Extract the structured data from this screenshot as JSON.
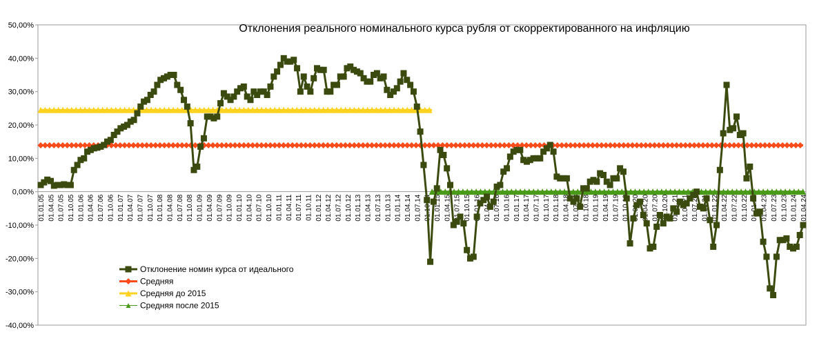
{
  "chart_data": {
    "type": "line",
    "title": "Отклонения реального номинального курса рубля от скорректированного на инфляцию",
    "xlabel": "",
    "ylabel": "",
    "ylim": [
      -0.4,
      0.5
    ],
    "y_tick_labels": [
      "50,00%",
      "40,00%",
      "30,00%",
      "20,00%",
      "10,00%",
      "0,00%",
      "-10,00%",
      "-20,00%",
      "-30,00%",
      "-40,00%"
    ],
    "y_tick_values": [
      0.5,
      0.4,
      0.3,
      0.2,
      0.1,
      0.0,
      -0.1,
      -0.2,
      -0.3,
      -0.4
    ],
    "x_tick_labels": [
      "01.01.05",
      "01.04.05",
      "01.07.05",
      "01.10.05",
      "01.01.06",
      "01.04.06",
      "01.07.06",
      "01.10.06",
      "01.01.07",
      "01.04.07",
      "01.07.07",
      "01.10.07",
      "01.01.08",
      "01.04.08",
      "01.07.08",
      "01.10.08",
      "01.01.09",
      "01.04.09",
      "01.07.09",
      "01.10.09",
      "01.01.10",
      "01.04.10",
      "01.07.10",
      "01.10.10",
      "01.01.11",
      "01.04.11",
      "01.07.11",
      "01.10.11",
      "01.01.12",
      "01.04.12",
      "01.07.12",
      "01.10.12",
      "01.01.13",
      "01.04.13",
      "01.07.13",
      "01.10.13",
      "01.01.14",
      "01.04.14",
      "01.07.14",
      "01.10.14",
      "01.01.15",
      "01.04.15",
      "01.07.15",
      "01.10.15",
      "01.01.16",
      "01.04.16",
      "01.07.16",
      "01.10.16",
      "01.01.17",
      "01.04.17",
      "01.07.17",
      "01.10.17",
      "01.01.18",
      "01.04.18",
      "01.07.18",
      "01.10.18",
      "01.01.19",
      "01.04.19",
      "01.07.19",
      "01.10.19",
      "01.01.20",
      "01.04.20",
      "01.07.20",
      "01.10.20",
      "01.01.21",
      "01.04.21",
      "01.07.21",
      "01.10.21",
      "01.01.22",
      "01.04.22",
      "01.07.22",
      "01.10.22",
      "01.01.23",
      "01.04.23",
      "01.07.23",
      "01.10.23",
      "01.01.24",
      "01.04.24"
    ],
    "grid": false,
    "legend_position": "bottom-left",
    "series": [
      {
        "name": "Отклонение номин курса от идеального",
        "color": "#3b4a0f",
        "marker": "square",
        "values": [
          0.02,
          0.028,
          0.036,
          0.032,
          0.018,
          0.02,
          0.02,
          0.022,
          0.02,
          0.02,
          0.065,
          0.08,
          0.095,
          0.1,
          0.12,
          0.125,
          0.13,
          0.132,
          0.135,
          0.14,
          0.15,
          0.155,
          0.17,
          0.18,
          0.19,
          0.195,
          0.2,
          0.21,
          0.215,
          0.235,
          0.255,
          0.27,
          0.275,
          0.29,
          0.3,
          0.32,
          0.335,
          0.34,
          0.345,
          0.35,
          0.35,
          0.32,
          0.305,
          0.275,
          0.255,
          0.205,
          0.065,
          0.075,
          0.135,
          0.16,
          0.225,
          0.225,
          0.22,
          0.225,
          0.265,
          0.295,
          0.285,
          0.275,
          0.285,
          0.3,
          0.31,
          0.315,
          0.285,
          0.275,
          0.3,
          0.29,
          0.3,
          0.3,
          0.29,
          0.315,
          0.345,
          0.36,
          0.38,
          0.4,
          0.39,
          0.39,
          0.395,
          0.37,
          0.3,
          0.345,
          0.315,
          0.3,
          0.34,
          0.37,
          0.365,
          0.365,
          0.3,
          0.3,
          0.32,
          0.32,
          0.345,
          0.345,
          0.37,
          0.375,
          0.365,
          0.36,
          0.355,
          0.34,
          0.33,
          0.33,
          0.35,
          0.355,
          0.34,
          0.345,
          0.305,
          0.29,
          0.3,
          0.31,
          0.33,
          0.355,
          0.335,
          0.32,
          0.3,
          0.255,
          0.18,
          0.08,
          -0.025,
          -0.21,
          -0.03,
          0.01,
          0.125,
          0.11,
          0.07,
          0.02,
          -0.1,
          -0.09,
          -0.075,
          -0.095,
          -0.175,
          -0.2,
          -0.195,
          -0.075,
          -0.035,
          -0.025,
          -0.015,
          -0.045,
          -0.03,
          0.015,
          0.02,
          0.06,
          0.07,
          0.105,
          0.12,
          0.125,
          0.125,
          0.095,
          0.09,
          0.095,
          0.1,
          0.1,
          0.1,
          0.12,
          0.13,
          0.14,
          0.12,
          0.045,
          0.04,
          0.04,
          0.04,
          -0.02,
          -0.03,
          -0.02,
          -0.045,
          0.01,
          0.01,
          0.03,
          0.035,
          0.03,
          0.055,
          0.05,
          0.03,
          0.02,
          0.04,
          0.04,
          0.07,
          0.06,
          -0.02,
          -0.155,
          -0.08,
          -0.04,
          -0.03,
          -0.07,
          -0.095,
          -0.17,
          -0.165,
          -0.105,
          -0.07,
          -0.095,
          -0.075,
          -0.08,
          -0.05,
          -0.06,
          -0.03,
          -0.04,
          -0.035,
          -0.02,
          -0.01,
          0.0,
          -0.045,
          -0.05,
          -0.02,
          -0.085,
          -0.165,
          -0.1,
          0.065,
          0.175,
          0.32,
          0.185,
          0.19,
          0.225,
          0.17,
          0.175,
          0.04,
          0.075,
          -0.02,
          -0.065,
          -0.06,
          -0.15,
          -0.195,
          -0.29,
          -0.31,
          -0.195,
          -0.145,
          -0.145,
          -0.14,
          -0.165,
          -0.17,
          -0.165,
          -0.13,
          -0.1
        ]
      },
      {
        "name": "Средняя",
        "color": "#ff4a1a",
        "marker": "diamond",
        "value": 0.139,
        "x_range": [
          0.0,
          1.0
        ]
      },
      {
        "name": "Средняя до 2015",
        "color": "#ffd21f",
        "marker": "triangle",
        "value": 0.245,
        "x_range": [
          0.0,
          0.5132
        ]
      },
      {
        "name": "Средняя  после 2015",
        "color": "#4a9a1a",
        "marker": "triangle",
        "value": 0.0,
        "x_range": [
          0.5132,
          1.0
        ]
      }
    ]
  }
}
